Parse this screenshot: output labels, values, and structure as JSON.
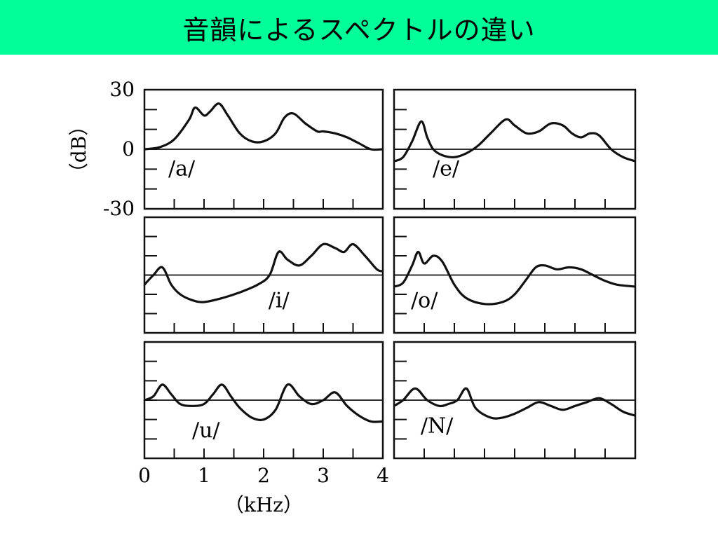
{
  "title": "音韻によるスペクトルの違い",
  "colors": {
    "title_bar": "#00ff99",
    "ink": "#111111"
  },
  "chart_data": {
    "type": "line",
    "layout": "small-multiples 3x2",
    "ylabel": "（dB）",
    "xlabel": "（kHz）",
    "ylim": [
      -30,
      30
    ],
    "xlim": [
      0,
      4
    ],
    "y_ticks": [
      "30",
      "0",
      "-30"
    ],
    "x_ticks": [
      "0",
      "1",
      "2",
      "3",
      "4"
    ],
    "baseline_db": 0,
    "panels": [
      {
        "label": "/a/",
        "x": [
          0,
          0.25,
          0.5,
          0.75,
          0.85,
          1.0,
          1.1,
          1.25,
          1.4,
          1.6,
          1.8,
          2.0,
          2.2,
          2.35,
          2.5,
          2.7,
          2.9,
          3.0,
          3.2,
          3.4,
          3.6,
          3.8,
          4.0
        ],
        "y": [
          0,
          1,
          5,
          15,
          21,
          17,
          19,
          23,
          17,
          8,
          4,
          4,
          8,
          16,
          18,
          13,
          9,
          9,
          8,
          6,
          3,
          0,
          0
        ]
      },
      {
        "label": "/e/",
        "x": [
          0,
          0.15,
          0.3,
          0.45,
          0.55,
          0.65,
          0.8,
          1.0,
          1.2,
          1.4,
          1.6,
          1.85,
          2.0,
          2.2,
          2.4,
          2.6,
          2.8,
          2.95,
          3.1,
          3.25,
          3.4,
          3.6,
          3.8,
          4.0
        ],
        "y": [
          -6,
          -4,
          4,
          14,
          6,
          0,
          -3,
          -4,
          -2,
          2,
          8,
          15,
          12,
          8,
          9,
          13,
          12,
          8,
          6,
          8,
          7,
          0,
          -4,
          -6
        ]
      },
      {
        "label": "/i/",
        "x": [
          0,
          0.15,
          0.3,
          0.45,
          0.6,
          0.8,
          1.0,
          1.3,
          1.6,
          1.9,
          2.1,
          2.25,
          2.4,
          2.6,
          2.8,
          3.0,
          3.2,
          3.35,
          3.5,
          3.7,
          3.9,
          4.0
        ],
        "y": [
          -5,
          0,
          4,
          -5,
          -10,
          -13,
          -14,
          -12,
          -9,
          -5,
          0,
          12,
          8,
          5,
          10,
          16,
          14,
          12,
          16,
          10,
          3,
          2
        ]
      },
      {
        "label": "/o/",
        "x": [
          0,
          0.15,
          0.3,
          0.4,
          0.5,
          0.65,
          0.8,
          1.0,
          1.2,
          1.5,
          1.8,
          2.0,
          2.2,
          2.35,
          2.5,
          2.7,
          2.9,
          3.1,
          3.3,
          3.5,
          3.7,
          4.0
        ],
        "y": [
          -6,
          -4,
          5,
          12,
          6,
          10,
          7,
          -5,
          -12,
          -15,
          -14,
          -10,
          -2,
          4,
          5,
          3,
          4,
          3,
          0,
          -3,
          -5,
          -6
        ]
      },
      {
        "label": "/u/",
        "x": [
          0,
          0.15,
          0.3,
          0.45,
          0.6,
          0.8,
          1.0,
          1.15,
          1.3,
          1.45,
          1.6,
          1.8,
          2.0,
          2.2,
          2.4,
          2.6,
          2.8,
          3.0,
          3.2,
          3.4,
          3.6,
          3.8,
          4.0
        ],
        "y": [
          0,
          2,
          8,
          3,
          -2,
          -3,
          -2,
          3,
          8,
          2,
          -4,
          -9,
          -10,
          -5,
          8,
          2,
          -2,
          0,
          4,
          -3,
          -8,
          -11,
          -11
        ]
      },
      {
        "label": "/N/",
        "x": [
          0,
          0.15,
          0.35,
          0.55,
          0.75,
          0.9,
          1.05,
          1.2,
          1.35,
          1.6,
          1.8,
          2.0,
          2.2,
          2.4,
          2.6,
          2.8,
          3.0,
          3.2,
          3.4,
          3.6,
          3.8,
          4.0
        ],
        "y": [
          -3,
          0,
          6,
          0,
          -3,
          -2,
          0,
          6,
          -4,
          -9,
          -9,
          -7,
          -4,
          -1,
          -3,
          -5,
          -3,
          -1,
          1,
          -2,
          -6,
          -8
        ]
      }
    ]
  }
}
